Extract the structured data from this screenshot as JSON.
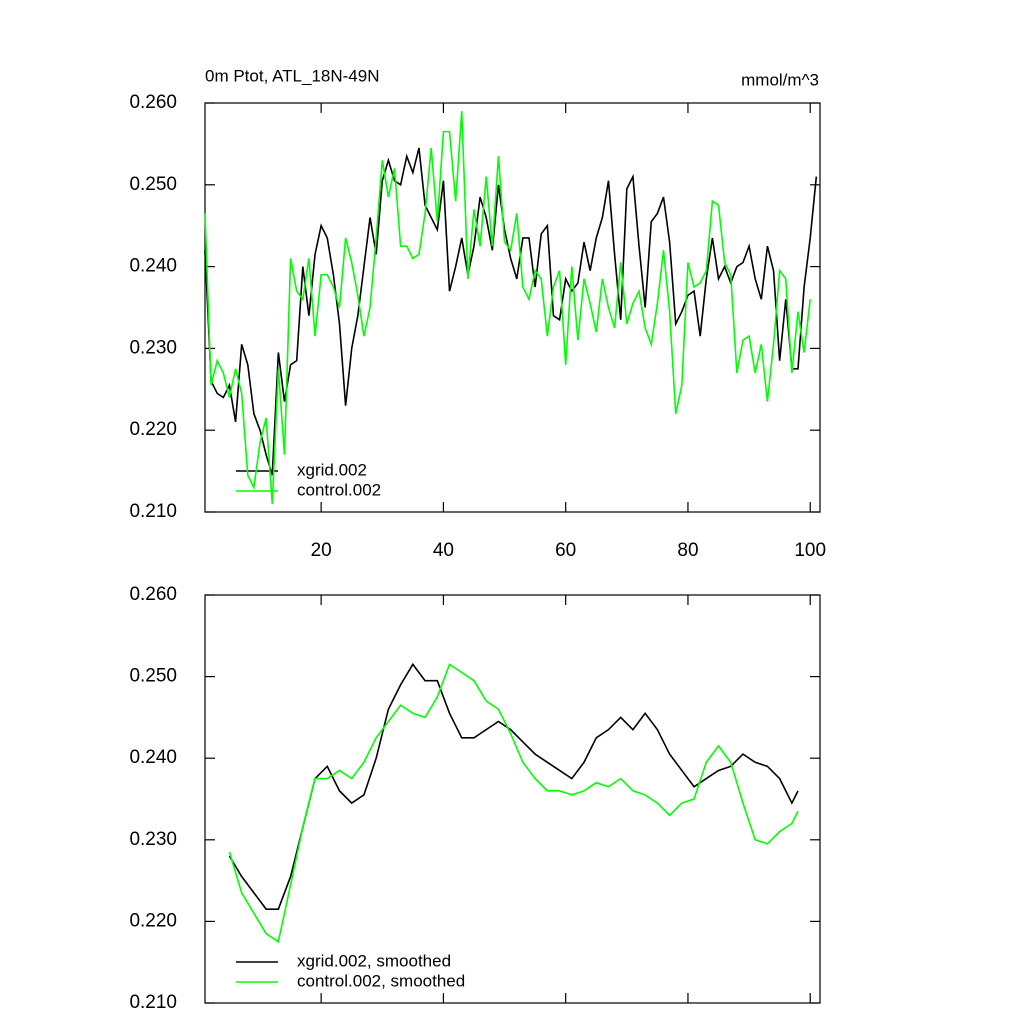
{
  "chart_data": [
    {
      "type": "line",
      "title": "0m Ptot, ATL_18N-49N",
      "units": "mmol/m^3",
      "x": [
        1,
        2,
        3,
        4,
        5,
        6,
        7,
        8,
        9,
        10,
        11,
        12,
        13,
        14,
        15,
        16,
        17,
        18,
        19,
        20,
        21,
        22,
        23,
        24,
        25,
        26,
        27,
        28,
        29,
        30,
        31,
        32,
        33,
        34,
        35,
        36,
        37,
        38,
        39,
        40,
        41,
        42,
        43,
        44,
        45,
        46,
        47,
        48,
        49,
        50,
        51,
        52,
        53,
        54,
        55,
        56,
        57,
        58,
        59,
        60,
        61,
        62,
        63,
        64,
        65,
        66,
        67,
        68,
        69,
        70,
        71,
        72,
        73,
        74,
        75,
        76,
        77,
        78,
        79,
        80,
        81,
        82,
        83,
        84,
        85,
        86,
        87,
        88,
        89,
        90,
        91,
        92,
        93,
        94,
        95,
        96,
        97,
        98,
        99,
        100,
        101
      ],
      "series": [
        {
          "name": "xgrid.002",
          "color": "#000000",
          "values": [
            0.242,
            0.226,
            0.2245,
            0.224,
            0.2255,
            0.221,
            0.2305,
            0.228,
            0.222,
            0.22,
            0.217,
            0.2145,
            0.2295,
            0.2235,
            0.228,
            0.2285,
            0.24,
            0.234,
            0.2415,
            0.245,
            0.2435,
            0.239,
            0.233,
            0.223,
            0.23,
            0.234,
            0.24,
            0.246,
            0.2415,
            0.2505,
            0.253,
            0.2505,
            0.25,
            0.2535,
            0.2515,
            0.2545,
            0.2475,
            0.246,
            0.2445,
            0.2505,
            0.237,
            0.24,
            0.2435,
            0.239,
            0.2425,
            0.2485,
            0.246,
            0.242,
            0.25,
            0.2445,
            0.241,
            0.2385,
            0.2435,
            0.2435,
            0.2375,
            0.244,
            0.245,
            0.234,
            0.2335,
            0.2385,
            0.237,
            0.238,
            0.243,
            0.2395,
            0.2435,
            0.246,
            0.2505,
            0.2415,
            0.2335,
            0.2495,
            0.251,
            0.2425,
            0.235,
            0.2455,
            0.2465,
            0.2485,
            0.243,
            0.233,
            0.2345,
            0.2365,
            0.237,
            0.2315,
            0.2385,
            0.2435,
            0.2385,
            0.24,
            0.238,
            0.24,
            0.2405,
            0.2425,
            0.2385,
            0.236,
            0.2425,
            0.2395,
            0.2285,
            0.236,
            0.2275,
            0.2275,
            0.2375,
            0.2435,
            0.251
          ]
        },
        {
          "name": "control.002",
          "color": "#00ff00",
          "values": [
            0.2465,
            0.2255,
            0.2285,
            0.227,
            0.224,
            0.2275,
            0.2245,
            0.2145,
            0.213,
            0.2185,
            0.2215,
            0.211,
            0.2275,
            0.217,
            0.241,
            0.237,
            0.236,
            0.241,
            0.2315,
            0.239,
            0.239,
            0.2375,
            0.235,
            0.2435,
            0.2405,
            0.2365,
            0.2315,
            0.235,
            0.2435,
            0.253,
            0.2485,
            0.252,
            0.2425,
            0.2425,
            0.241,
            0.2415,
            0.2465,
            0.2545,
            0.2455,
            0.2565,
            0.2565,
            0.248,
            0.259,
            0.2385,
            0.247,
            0.2425,
            0.251,
            0.2425,
            0.2535,
            0.243,
            0.242,
            0.2465,
            0.2375,
            0.236,
            0.2395,
            0.2385,
            0.2315,
            0.2375,
            0.2395,
            0.228,
            0.24,
            0.231,
            0.2385,
            0.2355,
            0.232,
            0.2385,
            0.235,
            0.2325,
            0.2405,
            0.233,
            0.2355,
            0.237,
            0.2325,
            0.2305,
            0.2355,
            0.242,
            0.2345,
            0.222,
            0.2255,
            0.2405,
            0.2375,
            0.238,
            0.2395,
            0.248,
            0.2475,
            0.2405,
            0.239,
            0.227,
            0.231,
            0.2315,
            0.227,
            0.2305,
            0.2235,
            0.2305,
            0.2395,
            0.2385,
            0.227,
            0.2345,
            0.2295,
            0.236,
            null
          ]
        }
      ],
      "xlim": [
        1,
        101.6
      ],
      "xticks": [
        20,
        40,
        60,
        80,
        100
      ],
      "ylim": [
        0.21,
        0.26
      ],
      "yticks": [
        {
          "value": 0.21,
          "label": "0.210"
        },
        {
          "value": 0.22,
          "label": "0.220"
        },
        {
          "value": 0.23,
          "label": "0.230"
        },
        {
          "value": 0.24,
          "label": "0.240"
        },
        {
          "value": 0.25,
          "label": "0.250"
        },
        {
          "value": 0.26,
          "label": "0.260"
        }
      ],
      "legend": "lower-left",
      "show_xtick_labels": true
    },
    {
      "type": "line",
      "x": [
        5,
        7,
        9,
        11,
        13,
        15,
        17,
        19,
        21,
        23,
        25,
        27,
        29,
        31,
        33,
        35,
        37,
        39,
        41,
        43,
        45,
        47,
        49,
        51,
        53,
        55,
        57,
        59,
        61,
        63,
        65,
        67,
        69,
        71,
        73,
        75,
        77,
        79,
        81,
        83,
        85,
        87,
        89,
        91,
        93,
        95,
        97,
        98
      ],
      "series": [
        {
          "name": "xgrid.002, smoothed",
          "color": "#000000",
          "values": [
            0.228,
            0.2255,
            0.2235,
            0.2215,
            0.2215,
            0.2255,
            0.2315,
            0.2375,
            0.239,
            0.236,
            0.2345,
            0.2355,
            0.24,
            0.246,
            0.249,
            0.2515,
            0.2495,
            0.2495,
            0.2455,
            0.2425,
            0.2425,
            0.2435,
            0.2445,
            0.2435,
            0.242,
            0.2405,
            0.2395,
            0.2385,
            0.2375,
            0.2395,
            0.2425,
            0.2435,
            0.245,
            0.2435,
            0.2455,
            0.2435,
            0.2405,
            0.2385,
            0.2365,
            0.2375,
            0.2385,
            0.239,
            0.2405,
            0.2395,
            0.239,
            0.2375,
            0.2345,
            0.236
          ]
        },
        {
          "name": "control.002, smoothed",
          "color": "#00ff00",
          "values": [
            0.2285,
            0.2235,
            0.221,
            0.2185,
            0.2175,
            0.2245,
            0.2315,
            0.2375,
            0.2375,
            0.2385,
            0.2375,
            0.2395,
            0.2425,
            0.2445,
            0.2465,
            0.2455,
            0.245,
            0.2475,
            0.2515,
            0.2505,
            0.2495,
            0.247,
            0.246,
            0.243,
            0.2395,
            0.2375,
            0.236,
            0.236,
            0.2355,
            0.236,
            0.237,
            0.2365,
            0.2375,
            0.236,
            0.2355,
            0.2345,
            0.233,
            0.2345,
            0.235,
            0.2395,
            0.2415,
            0.2395,
            0.2345,
            0.23,
            0.2295,
            0.231,
            0.232,
            0.2335
          ]
        }
      ],
      "xlim": [
        1,
        101.6
      ],
      "xticks": [
        20,
        40,
        60,
        80,
        100
      ],
      "ylim": [
        0.21,
        0.26
      ],
      "yticks": [
        {
          "value": 0.21,
          "label": "0.210"
        },
        {
          "value": 0.22,
          "label": "0.220"
        },
        {
          "value": 0.23,
          "label": "0.230"
        },
        {
          "value": 0.24,
          "label": "0.240"
        },
        {
          "value": 0.25,
          "label": "0.250"
        },
        {
          "value": 0.26,
          "label": "0.260"
        }
      ],
      "legend": "lower-left",
      "show_xtick_labels": false
    }
  ]
}
